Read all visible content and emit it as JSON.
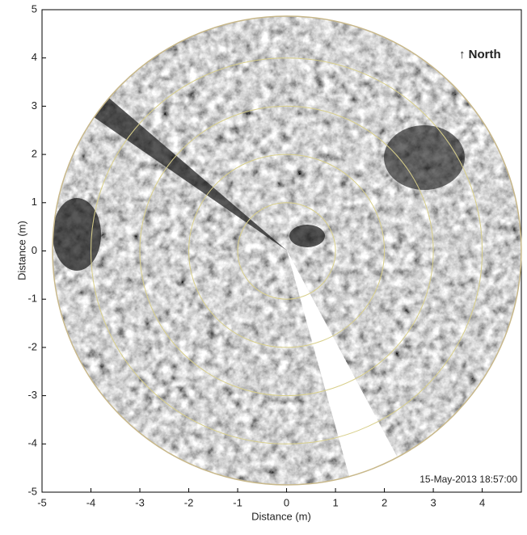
{
  "chart_data": {
    "type": "sonar",
    "xlabel": "Distance (m)",
    "ylabel": "Distance (m)",
    "xlim": [
      -5,
      4.8
    ],
    "ylim": [
      -5,
      5
    ],
    "xticks": [
      -5,
      -4,
      -3,
      -2,
      -1,
      0,
      1,
      2,
      3,
      4
    ],
    "yticks": [
      -5,
      -4,
      -3,
      -2,
      -1,
      0,
      1,
      2,
      3,
      4,
      5
    ],
    "rings": [
      1,
      2,
      3,
      4
    ],
    "ring_color": "#d8cf8a",
    "annotations": [
      "↑ North",
      "15-May-2013 18:57:00"
    ]
  }
}
